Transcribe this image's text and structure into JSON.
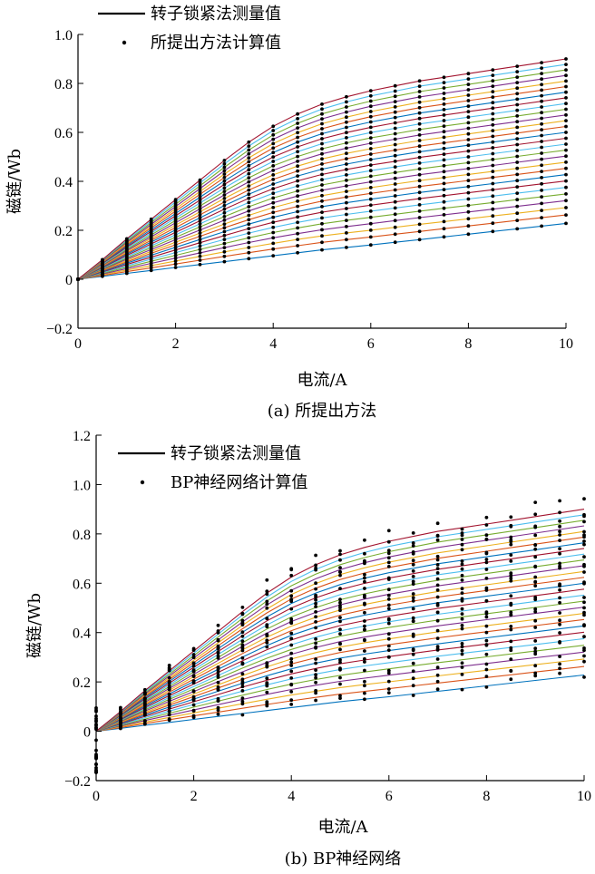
{
  "chart_data": [
    {
      "type": "line",
      "caption": "(a) 所提出方法",
      "xlabel": "电流/A",
      "ylabel": "磁链/Wb",
      "xlim": [
        0,
        10
      ],
      "ylim": [
        -0.2,
        1.0
      ],
      "xticks": [
        "0",
        "2",
        "4",
        "6",
        "8",
        "10"
      ],
      "yticks": [
        "−0.2",
        "0",
        "0.2",
        "0.4",
        "0.6",
        "0.8",
        "1.0"
      ],
      "grid": false,
      "legend_position": "top-left",
      "legend": [
        "转子锁紧法测量值",
        "所提出方法计算值"
      ],
      "x": [
        0,
        0.5,
        1,
        1.5,
        2,
        2.5,
        3,
        3.5,
        4,
        4.5,
        5,
        5.5,
        6,
        6.5,
        7,
        7.5,
        8,
        8.5,
        9,
        9.5,
        10
      ],
      "curve_count": 28,
      "upper_envelope": [
        0,
        0.08,
        0.165,
        0.245,
        0.325,
        0.405,
        0.485,
        0.56,
        0.625,
        0.675,
        0.715,
        0.745,
        0.77,
        0.79,
        0.81,
        0.825,
        0.84,
        0.855,
        0.87,
        0.885,
        0.9
      ],
      "lower_envelope": [
        0,
        0.012,
        0.024,
        0.036,
        0.048,
        0.06,
        0.072,
        0.084,
        0.096,
        0.108,
        0.12,
        0.13,
        0.14,
        0.151,
        0.162,
        0.173,
        0.184,
        0.195,
        0.206,
        0.217,
        0.228
      ],
      "marker_scatter": 0.0
    },
    {
      "type": "line",
      "caption": "(b) BP神经网络",
      "xlabel": "电流/A",
      "ylabel": "磁链/Wb",
      "xlim": [
        0,
        10
      ],
      "ylim": [
        -0.2,
        1.2
      ],
      "xticks": [
        "0",
        "2",
        "4",
        "6",
        "8",
        "10"
      ],
      "yticks": [
        "−0.2",
        "0",
        "0.2",
        "0.4",
        "0.6",
        "0.8",
        "1.0",
        "1.2"
      ],
      "grid": false,
      "legend_position": "top-left",
      "legend": [
        "转子锁紧法测量值",
        "BP神经网络计算值"
      ],
      "x": [
        0,
        0.5,
        1,
        1.5,
        2,
        2.5,
        3,
        3.5,
        4,
        4.5,
        5,
        5.5,
        6,
        6.5,
        7,
        7.5,
        8,
        8.5,
        9,
        9.5,
        10
      ],
      "curve_count": 28,
      "upper_envelope": [
        0,
        0.08,
        0.165,
        0.245,
        0.325,
        0.405,
        0.485,
        0.56,
        0.625,
        0.675,
        0.715,
        0.745,
        0.77,
        0.79,
        0.81,
        0.825,
        0.84,
        0.855,
        0.87,
        0.885,
        0.9
      ],
      "lower_envelope": [
        0,
        0.012,
        0.024,
        0.036,
        0.048,
        0.06,
        0.072,
        0.084,
        0.096,
        0.108,
        0.12,
        0.13,
        0.14,
        0.151,
        0.162,
        0.173,
        0.184,
        0.195,
        0.206,
        0.217,
        0.228
      ],
      "marker_scatter": 0.09
    }
  ],
  "colors": {
    "line_palette": [
      "#0072BD",
      "#D95319",
      "#EDB120",
      "#7E2F8E",
      "#77AC30",
      "#4DBEEE",
      "#A2142F"
    ],
    "marker": "#000000",
    "axis": "#000000"
  }
}
